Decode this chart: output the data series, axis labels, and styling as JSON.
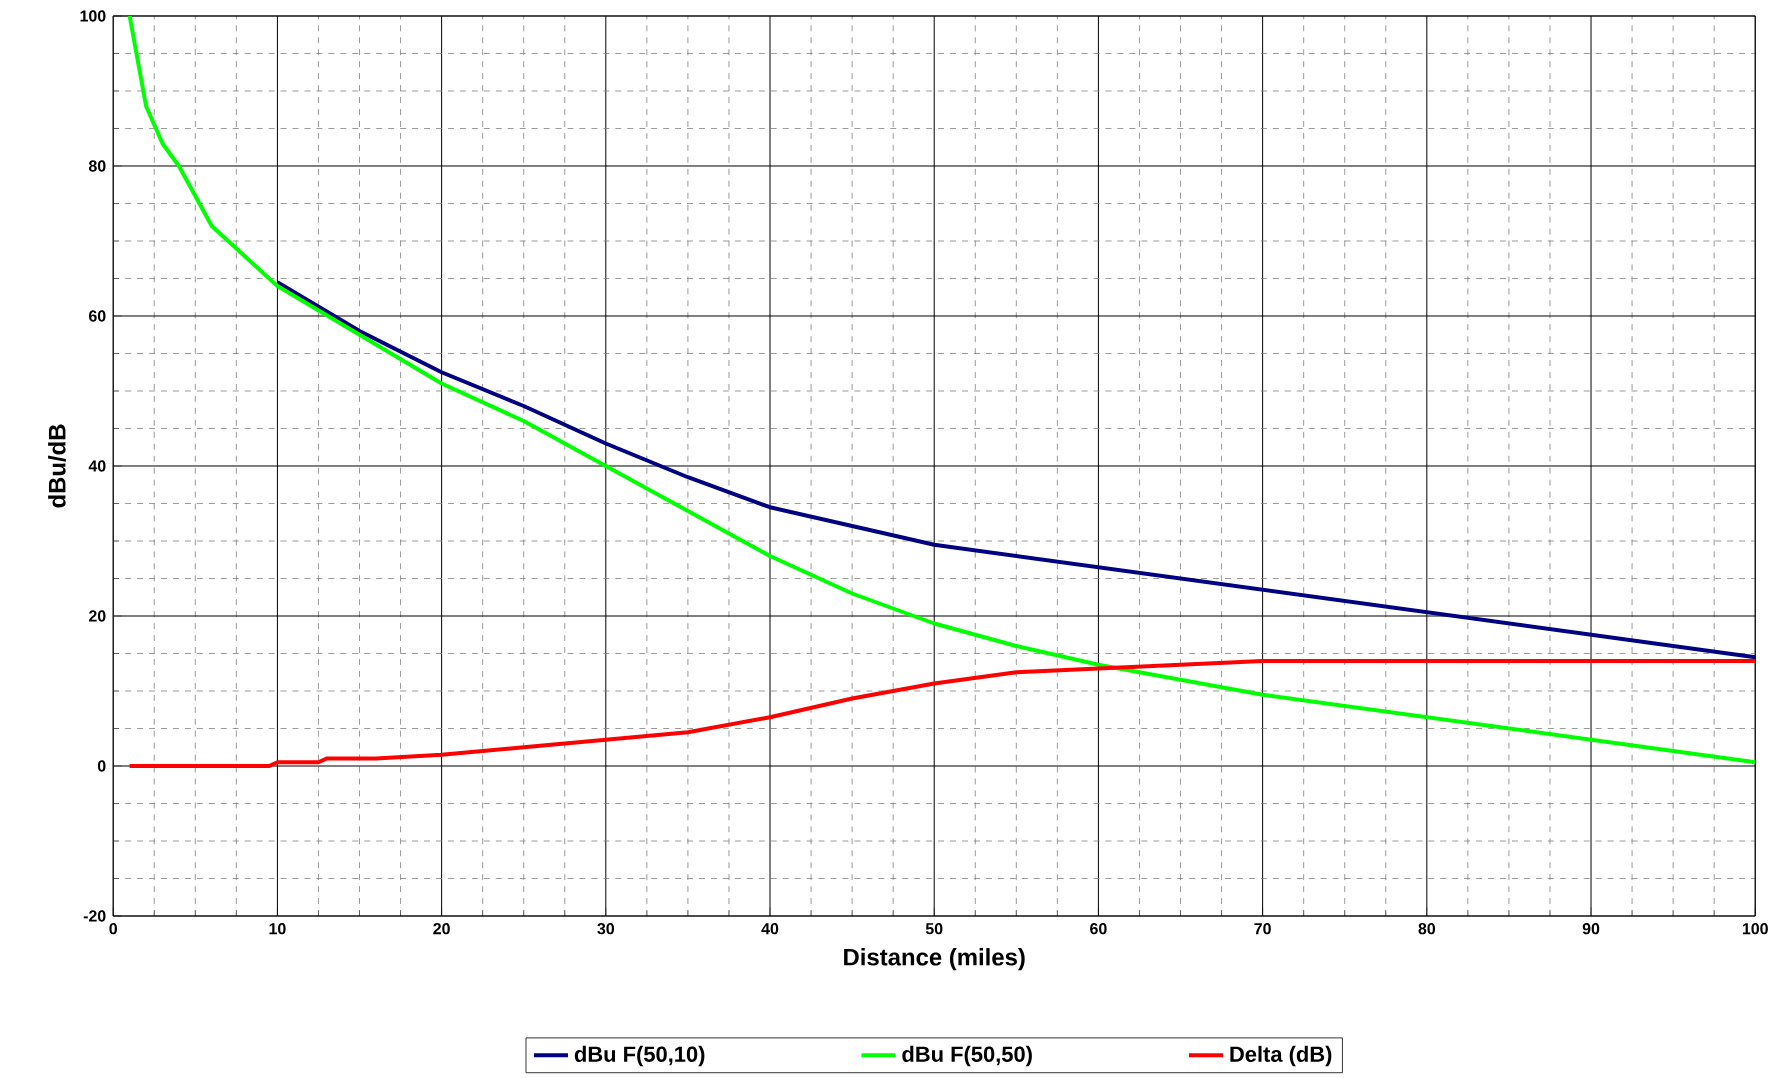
{
  "chart_data": {
    "type": "line",
    "xlabel": "Distance (miles)",
    "ylabel": "dBu/dB",
    "xlim": [
      0,
      100
    ],
    "ylim": [
      -20,
      100
    ],
    "xticks": [
      0,
      10,
      20,
      30,
      40,
      50,
      60,
      70,
      80,
      90,
      100
    ],
    "yticks": [
      -20,
      0,
      20,
      40,
      60,
      80,
      100
    ],
    "grid": true,
    "legend": "bottom",
    "marker": "none",
    "line_style": "solid",
    "series": [
      {
        "name": "dBu F(50,10)",
        "color": "#000080",
        "x": [
          10,
          15,
          20,
          25,
          30,
          35,
          40,
          45,
          50,
          55,
          60,
          65,
          70,
          75,
          80,
          85,
          90,
          95,
          100
        ],
        "values": [
          64.5,
          58,
          52.5,
          48,
          43,
          38.5,
          34.5,
          32,
          29.5,
          28,
          26.5,
          25,
          23.5,
          22,
          20.5,
          19,
          17.5,
          16,
          14.5
        ]
      },
      {
        "name": "dBu F(50,50)",
        "color": "#00ff00",
        "x": [
          1,
          2,
          3,
          4,
          5,
          6,
          7,
          8,
          10,
          15,
          20,
          25,
          30,
          35,
          40,
          45,
          50,
          55,
          60,
          65,
          70,
          75,
          80,
          85,
          90,
          95,
          100
        ],
        "values": [
          100,
          88,
          83,
          80,
          76,
          72,
          70,
          68,
          64,
          57.5,
          51,
          46,
          40,
          34,
          28,
          23,
          19,
          16,
          13.5,
          11.5,
          9.5,
          8,
          6.5,
          5,
          3.5,
          2,
          0.5
        ]
      },
      {
        "name": "Delta (dB)",
        "color": "#ff0000",
        "x": [
          1,
          9.5,
          10,
          12.5,
          13,
          16,
          20,
          25,
          30,
          35,
          40,
          45,
          50,
          55,
          60,
          65,
          70,
          80,
          90,
          95,
          100
        ],
        "values": [
          0,
          0,
          0.5,
          0.5,
          1,
          1,
          1.5,
          2.5,
          3.5,
          4.5,
          6.5,
          9,
          11,
          12.5,
          13,
          13.5,
          14,
          14,
          14,
          14,
          14
        ]
      }
    ]
  }
}
